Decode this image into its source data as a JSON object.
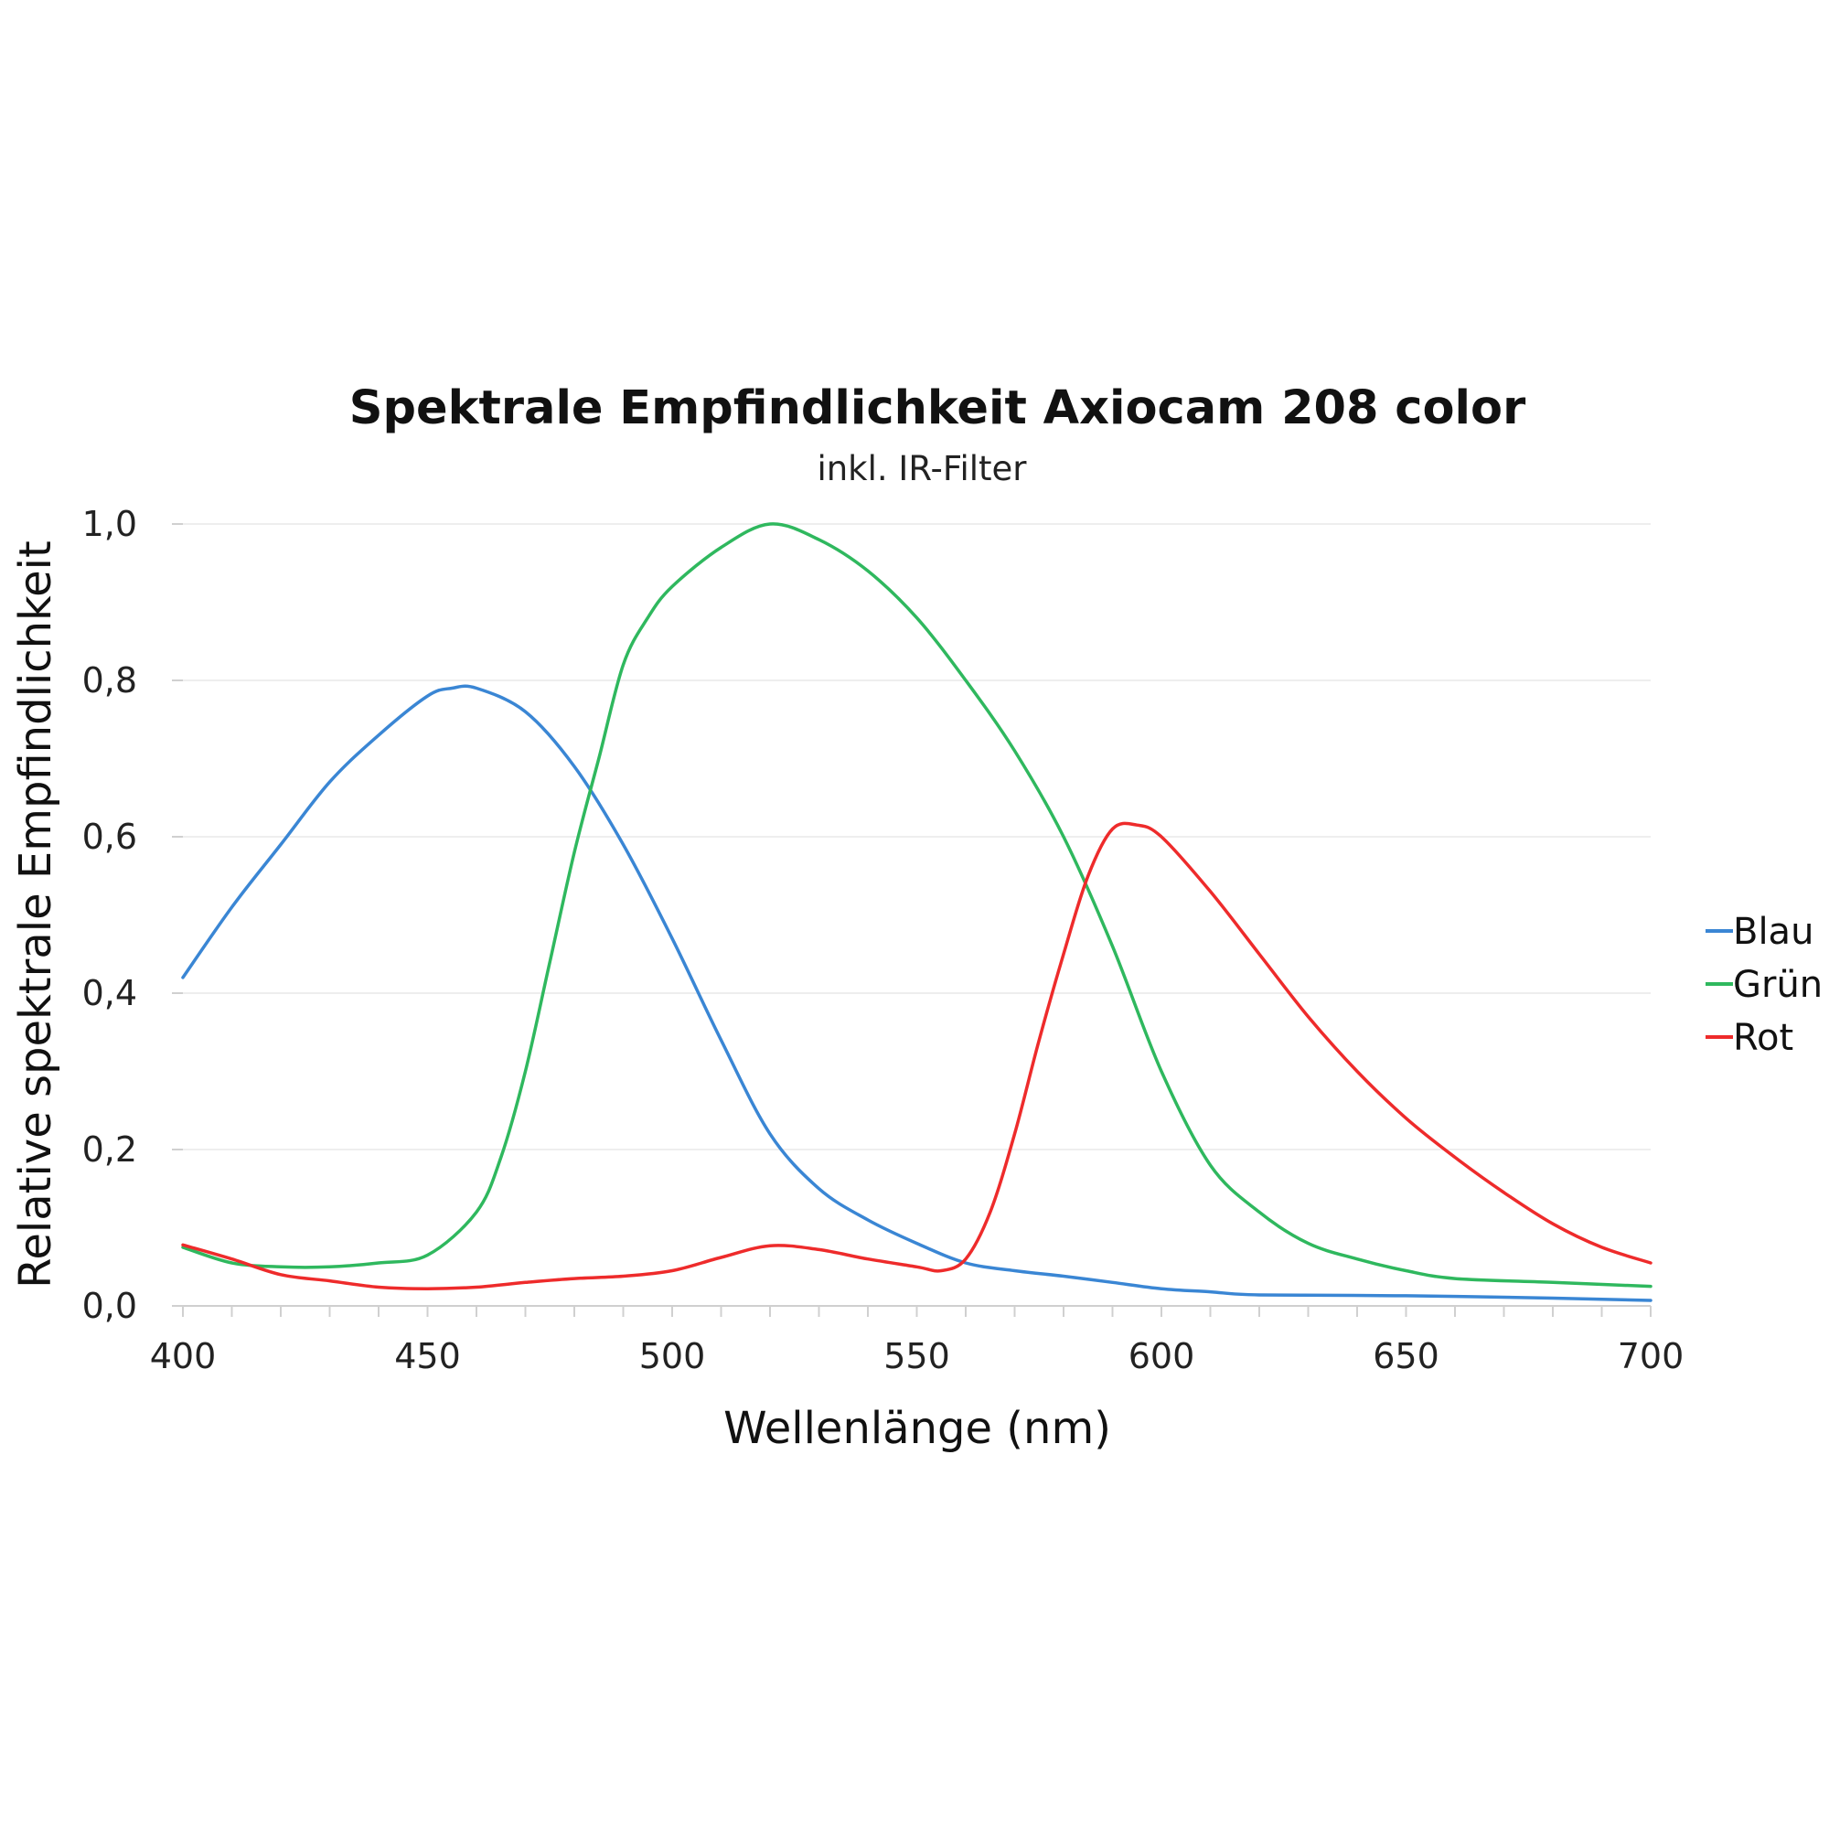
{
  "chart_data": {
    "type": "line",
    "title": "Spektrale Empfindlichkeit Axiocam 208 color",
    "subtitle": "inkl. IR-Filter",
    "xlabel": "Wellenlänge (nm)",
    "ylabel": "Relative spektrale Empfindlichkeit",
    "xlim": [
      400,
      700
    ],
    "ylim": [
      0,
      1
    ],
    "x_ticks": [
      400,
      450,
      500,
      550,
      600,
      650,
      700
    ],
    "x_tick_labels": [
      "400",
      "450",
      "500",
      "550",
      "600",
      "650",
      "700"
    ],
    "y_ticks": [
      0,
      0.2,
      0.4,
      0.6,
      0.8,
      1.0
    ],
    "y_tick_labels": [
      "0,0",
      "0,2",
      "0,4",
      "0,6",
      "0,8",
      "1,0"
    ],
    "grid": "horizontal",
    "legend_position": "right",
    "series": [
      {
        "name": "Blau",
        "color": "#3a86d4",
        "points": [
          [
            400,
            0.42
          ],
          [
            410,
            0.51
          ],
          [
            420,
            0.59
          ],
          [
            430,
            0.67
          ],
          [
            440,
            0.73
          ],
          [
            450,
            0.78
          ],
          [
            455,
            0.79
          ],
          [
            460,
            0.79
          ],
          [
            470,
            0.76
          ],
          [
            480,
            0.69
          ],
          [
            490,
            0.59
          ],
          [
            500,
            0.47
          ],
          [
            510,
            0.34
          ],
          [
            520,
            0.22
          ],
          [
            530,
            0.15
          ],
          [
            540,
            0.11
          ],
          [
            550,
            0.08
          ],
          [
            560,
            0.055
          ],
          [
            570,
            0.045
          ],
          [
            580,
            0.038
          ],
          [
            590,
            0.03
          ],
          [
            600,
            0.022
          ],
          [
            610,
            0.018
          ],
          [
            620,
            0.014
          ],
          [
            650,
            0.013
          ],
          [
            680,
            0.01
          ],
          [
            700,
            0.007
          ]
        ]
      },
      {
        "name": "Grün",
        "color": "#2fb85e",
        "points": [
          [
            400,
            0.075
          ],
          [
            410,
            0.055
          ],
          [
            420,
            0.05
          ],
          [
            430,
            0.05
          ],
          [
            440,
            0.055
          ],
          [
            450,
            0.065
          ],
          [
            460,
            0.12
          ],
          [
            465,
            0.19
          ],
          [
            470,
            0.3
          ],
          [
            475,
            0.44
          ],
          [
            480,
            0.58
          ],
          [
            485,
            0.7
          ],
          [
            490,
            0.82
          ],
          [
            495,
            0.88
          ],
          [
            500,
            0.92
          ],
          [
            510,
            0.97
          ],
          [
            520,
            1.0
          ],
          [
            530,
            0.98
          ],
          [
            540,
            0.94
          ],
          [
            550,
            0.88
          ],
          [
            560,
            0.8
          ],
          [
            570,
            0.71
          ],
          [
            580,
            0.6
          ],
          [
            590,
            0.46
          ],
          [
            600,
            0.3
          ],
          [
            610,
            0.18
          ],
          [
            620,
            0.12
          ],
          [
            630,
            0.08
          ],
          [
            640,
            0.06
          ],
          [
            650,
            0.045
          ],
          [
            660,
            0.035
          ],
          [
            680,
            0.03
          ],
          [
            700,
            0.025
          ]
        ]
      },
      {
        "name": "Rot",
        "color": "#ee2b2b",
        "points": [
          [
            400,
            0.078
          ],
          [
            410,
            0.06
          ],
          [
            420,
            0.04
          ],
          [
            430,
            0.032
          ],
          [
            440,
            0.024
          ],
          [
            450,
            0.022
          ],
          [
            460,
            0.024
          ],
          [
            470,
            0.03
          ],
          [
            480,
            0.035
          ],
          [
            490,
            0.038
          ],
          [
            500,
            0.045
          ],
          [
            510,
            0.062
          ],
          [
            520,
            0.077
          ],
          [
            530,
            0.072
          ],
          [
            540,
            0.06
          ],
          [
            550,
            0.05
          ],
          [
            555,
            0.045
          ],
          [
            560,
            0.06
          ],
          [
            565,
            0.12
          ],
          [
            570,
            0.22
          ],
          [
            575,
            0.34
          ],
          [
            580,
            0.45
          ],
          [
            585,
            0.55
          ],
          [
            590,
            0.61
          ],
          [
            595,
            0.615
          ],
          [
            600,
            0.6
          ],
          [
            610,
            0.53
          ],
          [
            620,
            0.45
          ],
          [
            630,
            0.37
          ],
          [
            640,
            0.3
          ],
          [
            650,
            0.24
          ],
          [
            660,
            0.19
          ],
          [
            670,
            0.145
          ],
          [
            680,
            0.105
          ],
          [
            690,
            0.075
          ],
          [
            700,
            0.055
          ]
        ]
      }
    ]
  }
}
